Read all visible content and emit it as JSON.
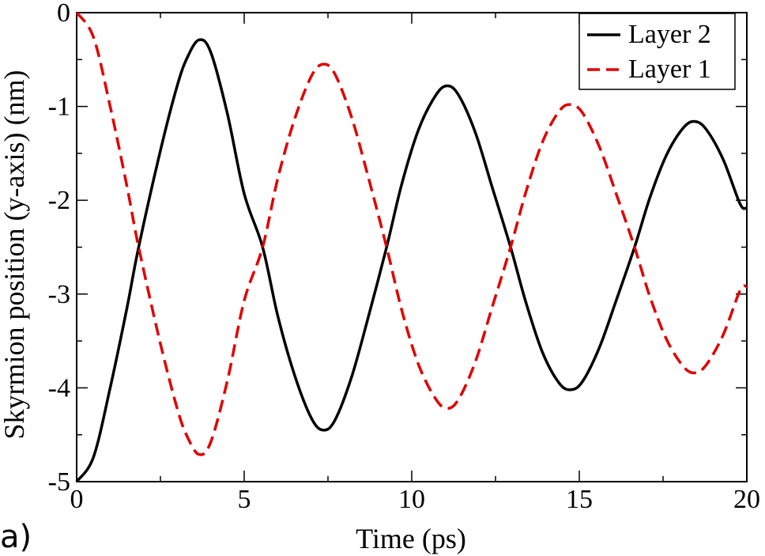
{
  "panel_label": "a)",
  "chart_data": {
    "type": "line",
    "title": "",
    "xlabel": "Time (ps)",
    "ylabel": "Skyrmion position (y-axis) (nm)",
    "xlim": [
      0,
      20
    ],
    "ylim": [
      -5,
      0
    ],
    "x_ticks": [
      0,
      5,
      10,
      15,
      20
    ],
    "y_ticks": [
      0,
      -1,
      -2,
      -3,
      -4,
      -5
    ],
    "x_tick_labels": [
      "0",
      "5",
      "10",
      "15",
      "20"
    ],
    "y_tick_labels": [
      "0",
      "-1",
      "-2",
      "-3",
      "-4",
      "-5"
    ],
    "grid": false,
    "legend_position": "top-right",
    "series": [
      {
        "name": "Layer 2",
        "color": "#000000",
        "style": "solid",
        "x": [
          0,
          0.5,
          1,
          1.5,
          1.85,
          2.5,
          3,
          3.3,
          3.65,
          4,
          4.5,
          5,
          5.55,
          6,
          6.5,
          7,
          7.35,
          7.7,
          8.2,
          8.7,
          9.25,
          9.7,
          10.2,
          10.7,
          11.05,
          11.4,
          11.9,
          12.4,
          12.95,
          13.4,
          13.9,
          14.4,
          14.75,
          15.1,
          15.6,
          16.1,
          16.65,
          17.1,
          17.6,
          18.1,
          18.45,
          18.8,
          19.3,
          19.8,
          20
        ],
        "values": [
          -5.0,
          -4.74,
          -4.0,
          -3.15,
          -2.5,
          -1.47,
          -0.78,
          -0.48,
          -0.29,
          -0.42,
          -1.08,
          -1.93,
          -2.5,
          -3.23,
          -3.86,
          -4.32,
          -4.45,
          -4.35,
          -3.89,
          -3.25,
          -2.5,
          -1.83,
          -1.25,
          -0.89,
          -0.78,
          -0.88,
          -1.28,
          -1.86,
          -2.5,
          -3.08,
          -3.62,
          -3.95,
          -4.02,
          -3.93,
          -3.57,
          -3.07,
          -2.5,
          -1.98,
          -1.52,
          -1.23,
          -1.16,
          -1.25,
          -1.57,
          -2.04,
          -2.08
        ]
      },
      {
        "name": "Layer 1",
        "color": "#e00000",
        "style": "dashed",
        "x": [
          0,
          0.5,
          1,
          1.5,
          1.85,
          2.5,
          3,
          3.3,
          3.65,
          4,
          4.5,
          5,
          5.55,
          6,
          6.5,
          7,
          7.35,
          7.7,
          8.2,
          8.7,
          9.25,
          9.7,
          10.2,
          10.7,
          11.05,
          11.4,
          11.9,
          12.4,
          12.95,
          13.4,
          13.9,
          14.4,
          14.75,
          15.1,
          15.6,
          16.1,
          16.65,
          17.1,
          17.6,
          18.1,
          18.45,
          18.8,
          19.3,
          19.8,
          20
        ],
        "values": [
          0.0,
          -0.26,
          -1.0,
          -1.85,
          -2.5,
          -3.53,
          -4.22,
          -4.52,
          -4.71,
          -4.58,
          -3.92,
          -3.07,
          -2.5,
          -1.77,
          -1.14,
          -0.68,
          -0.55,
          -0.65,
          -1.11,
          -1.75,
          -2.5,
          -3.17,
          -3.75,
          -4.11,
          -4.22,
          -4.12,
          -3.72,
          -3.14,
          -2.5,
          -1.92,
          -1.38,
          -1.05,
          -0.98,
          -1.07,
          -1.43,
          -1.93,
          -2.5,
          -3.02,
          -3.48,
          -3.77,
          -3.84,
          -3.75,
          -3.43,
          -2.96,
          -2.92
        ]
      }
    ]
  }
}
